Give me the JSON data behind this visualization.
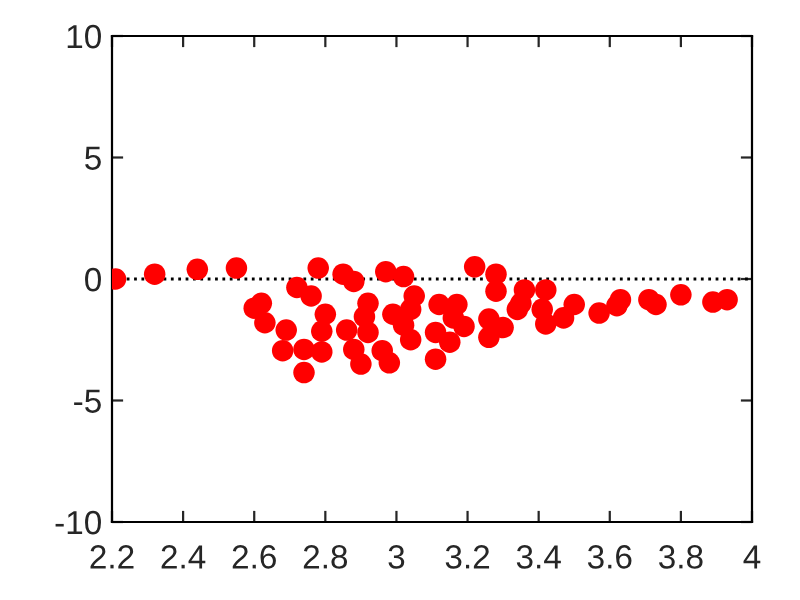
{
  "chart_data": {
    "type": "scatter",
    "marker": "circle",
    "grid": false,
    "legend": false,
    "xlim": [
      2.2,
      4
    ],
    "xticks": [
      2.2,
      2.4,
      2.6,
      2.8,
      3,
      3.2,
      3.4,
      3.6,
      3.8,
      4
    ],
    "ylim": [
      -10,
      10
    ],
    "yticks": [
      -10,
      -5,
      0,
      5,
      10
    ],
    "ref_lines": [
      {
        "axis": "y",
        "value": 0,
        "color": "#000000",
        "line_style": "dotted"
      }
    ],
    "series": [
      {
        "color": "#ff0000",
        "x": [
          2.21,
          2.32,
          2.44,
          2.55,
          2.78,
          2.85,
          2.88,
          2.97,
          3.02,
          3.22,
          3.28,
          3.28,
          3.36,
          3.42,
          2.72,
          2.76,
          2.6,
          2.62,
          2.63,
          2.69,
          2.68,
          2.74,
          2.74,
          2.79,
          2.8,
          2.79,
          2.86,
          2.88,
          2.9,
          2.92,
          2.91,
          2.92,
          2.96,
          2.98,
          2.99,
          3.02,
          3.04,
          3.05,
          3.04,
          3.12,
          3.11,
          3.11,
          3.15,
          3.16,
          3.17,
          3.19,
          3.26,
          3.26,
          3.3,
          3.34,
          3.35,
          3.41,
          3.42,
          3.47,
          3.5,
          3.57,
          3.62,
          3.63,
          3.71,
          3.73,
          3.8,
          3.89,
          3.93
        ],
        "values": [
          0.0,
          0.2,
          0.4,
          0.45,
          0.45,
          0.2,
          -0.1,
          0.3,
          0.1,
          0.5,
          0.2,
          -0.5,
          -0.45,
          -0.45,
          -0.35,
          -0.7,
          -1.2,
          -1.0,
          -1.8,
          -2.1,
          -2.95,
          -2.9,
          -3.85,
          -3.0,
          -1.45,
          -2.15,
          -2.1,
          -2.9,
          -3.5,
          -2.2,
          -1.55,
          -1.0,
          -2.95,
          -3.45,
          -1.45,
          -1.9,
          -2.5,
          -0.7,
          -1.25,
          -1.05,
          -2.2,
          -3.3,
          -2.6,
          -1.6,
          -1.05,
          -1.95,
          -1.65,
          -2.4,
          -2.0,
          -1.25,
          -1.0,
          -1.25,
          -1.85,
          -1.6,
          -1.05,
          -1.4,
          -1.1,
          -0.85,
          -0.85,
          -1.05,
          -0.65,
          -0.95,
          -0.85
        ]
      }
    ]
  }
}
